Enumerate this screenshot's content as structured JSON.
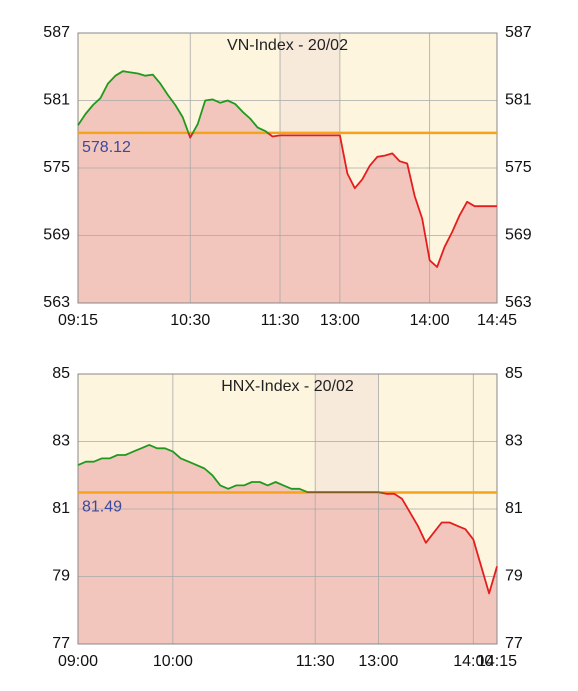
{
  "chart_data": [
    {
      "type": "line",
      "title": "VN-Index - 20/02",
      "x": [
        "09:15",
        "09:20",
        "09:25",
        "09:30",
        "09:35",
        "09:40",
        "09:45",
        "09:50",
        "09:55",
        "10:00",
        "10:05",
        "10:10",
        "10:15",
        "10:20",
        "10:25",
        "10:30",
        "10:35",
        "10:40",
        "10:45",
        "10:50",
        "10:55",
        "11:00",
        "11:05",
        "11:10",
        "11:15",
        "11:20",
        "11:25",
        "11:30",
        "13:00",
        "13:05",
        "13:10",
        "13:15",
        "13:20",
        "13:25",
        "13:30",
        "13:35",
        "13:40",
        "13:45",
        "13:50",
        "13:55",
        "14:00",
        "14:05",
        "14:10",
        "14:15",
        "14:20",
        "14:25",
        "14:30",
        "14:35",
        "14:40",
        "14:45"
      ],
      "values": [
        578.8,
        579.8,
        580.6,
        581.2,
        582.5,
        583.2,
        583.6,
        583.5,
        583.4,
        583.2,
        583.3,
        582.5,
        581.5,
        580.6,
        579.5,
        577.7,
        578.9,
        581.0,
        581.1,
        580.8,
        581.0,
        580.7,
        580.0,
        579.4,
        578.6,
        578.3,
        577.8,
        577.9,
        577.9,
        574.5,
        573.2,
        574.0,
        575.2,
        576.0,
        576.1,
        576.3,
        575.6,
        575.4,
        572.5,
        570.5,
        566.8,
        566.2,
        568.0,
        569.3,
        570.8,
        572.0,
        571.6,
        571.6,
        571.6,
        571.6
      ],
      "reference": 578.12,
      "ylim": [
        563,
        587
      ],
      "yticks": [
        563,
        569,
        575,
        581,
        587
      ],
      "xticks": [
        "09:15",
        "10:30",
        "11:30",
        "13:00",
        "14:00",
        "14:45"
      ],
      "grid": true,
      "up_color": "#1f9a1f",
      "down_color": "#e41e1e",
      "reference_color": "#f7a21b",
      "area_color": "#f3c6bd",
      "background_color": "#fdf5de",
      "break_color": "#f7eadb"
    },
    {
      "type": "line",
      "title": "HNX-Index - 20/02",
      "x": [
        "09:00",
        "09:05",
        "09:10",
        "09:15",
        "09:20",
        "09:25",
        "09:30",
        "09:35",
        "09:40",
        "09:45",
        "09:50",
        "09:55",
        "10:00",
        "10:05",
        "10:10",
        "10:15",
        "10:20",
        "10:25",
        "10:30",
        "10:35",
        "10:40",
        "10:45",
        "10:50",
        "10:55",
        "11:00",
        "11:05",
        "11:10",
        "11:15",
        "11:20",
        "11:25",
        "11:30",
        "13:00",
        "13:05",
        "13:10",
        "13:15",
        "13:20",
        "13:25",
        "13:30",
        "13:35",
        "13:40",
        "13:45",
        "13:50",
        "13:55",
        "14:00",
        "14:05",
        "14:10",
        "14:15"
      ],
      "values": [
        82.3,
        82.4,
        82.4,
        82.5,
        82.5,
        82.6,
        82.6,
        82.7,
        82.8,
        82.9,
        82.8,
        82.8,
        82.7,
        82.5,
        82.4,
        82.3,
        82.2,
        82.0,
        81.7,
        81.6,
        81.7,
        81.7,
        81.8,
        81.8,
        81.7,
        81.8,
        81.7,
        81.6,
        81.6,
        81.5,
        81.5,
        81.5,
        81.45,
        81.45,
        81.3,
        80.9,
        80.5,
        80.0,
        80.3,
        80.6,
        80.6,
        80.5,
        80.4,
        80.1,
        79.3,
        78.5,
        79.3
      ],
      "reference": 81.49,
      "ylim": [
        77,
        85
      ],
      "yticks": [
        77,
        79,
        81,
        83,
        85
      ],
      "xticks": [
        "09:00",
        "10:00",
        "11:30",
        "13:00",
        "14:00",
        "14:15"
      ],
      "grid": true,
      "up_color": "#1f9a1f",
      "down_color": "#e41e1e",
      "reference_color": "#f7a21b",
      "area_color": "#f3c6bd",
      "background_color": "#fdf5de",
      "break_color": "#f7eadb"
    }
  ]
}
